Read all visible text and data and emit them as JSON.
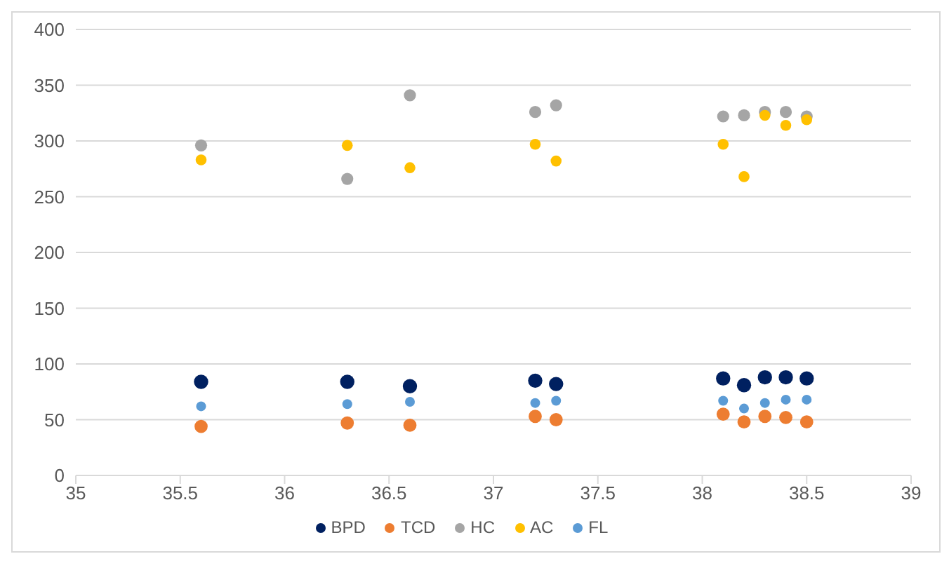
{
  "chart_data": {
    "type": "scatter",
    "x": [
      35.6,
      36.3,
      36.6,
      37.2,
      37.3,
      38.1,
      38.2,
      38.3,
      38.4,
      38.5
    ],
    "series": [
      {
        "name": "BPD",
        "color": "#002060",
        "values": [
          84,
          84,
          80,
          85,
          82,
          87,
          81,
          88,
          88,
          87
        ]
      },
      {
        "name": "TCD",
        "color": "#ed7d31",
        "values": [
          44,
          47,
          45,
          53,
          50,
          55,
          48,
          53,
          52,
          48
        ]
      },
      {
        "name": "HC",
        "color": "#a5a5a5",
        "values": [
          296,
          266,
          341,
          326,
          332,
          322,
          323,
          326,
          326,
          322
        ]
      },
      {
        "name": "AC",
        "color": "#ffc000",
        "values": [
          283,
          296,
          276,
          297,
          282,
          297,
          268,
          323,
          314,
          319
        ]
      },
      {
        "name": "FL",
        "color": "#5b9bd5",
        "values": [
          62,
          64,
          66,
          65,
          67,
          67,
          60,
          65,
          68,
          68
        ]
      }
    ],
    "xlim": [
      35,
      39
    ],
    "xticks": [
      35,
      35.5,
      36,
      36.5,
      37,
      37.5,
      38,
      38.5,
      39
    ],
    "ylim": [
      0,
      400
    ],
    "yticks": [
      0,
      50,
      100,
      150,
      200,
      250,
      300,
      350,
      400
    ],
    "grid": "y",
    "legend": "bottom",
    "marker": "circle"
  }
}
